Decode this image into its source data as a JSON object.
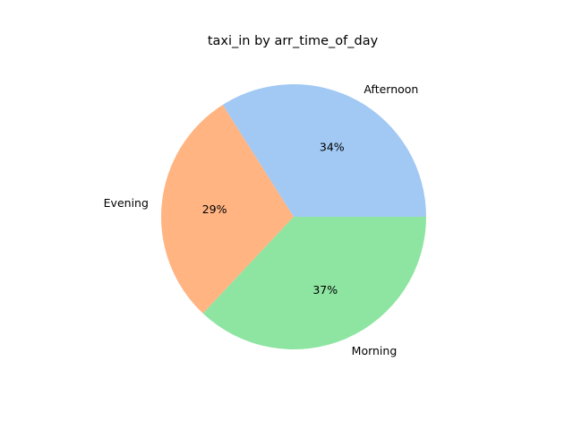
{
  "chart_data": {
    "type": "pie",
    "title": "taxi_in by arr_time_of_day",
    "categories": [
      "Afternoon",
      "Evening",
      "Morning"
    ],
    "values": [
      34,
      29,
      37
    ],
    "labels": [
      "34%",
      "29%",
      "37%"
    ],
    "colors": [
      "#a1c9f4",
      "#ffb482",
      "#8de5a1"
    ],
    "start_angle_deg": 0,
    "direction": "counterclockwise"
  }
}
